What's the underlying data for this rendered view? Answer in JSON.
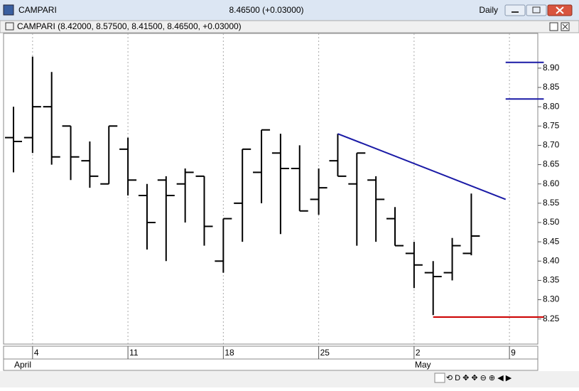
{
  "window": {
    "title": "CAMPARI",
    "quote": "8.46500 (+0.03000)",
    "period": "Daily",
    "pane_title": "CAMPARI (8.42000, 8.57500, 8.41500, 8.46500, +0.03000)"
  },
  "chart_data": {
    "type": "ohlc",
    "categories": [
      null,
      "4",
      null,
      null,
      null,
      null,
      "11",
      null,
      null,
      null,
      null,
      "18",
      null,
      null,
      null,
      null,
      "25",
      null,
      null,
      null,
      null,
      "2",
      null,
      null,
      null,
      null,
      "9"
    ],
    "months": [
      "April",
      null,
      null,
      null,
      null,
      null,
      null,
      null,
      null,
      null,
      null,
      null,
      null,
      null,
      null,
      null,
      null,
      null,
      null,
      null,
      null,
      "May",
      null,
      null,
      null,
      null,
      null
    ],
    "open": [
      8.72,
      8.72,
      8.8,
      8.75,
      8.66,
      8.6,
      8.69,
      8.57,
      8.61,
      8.6,
      8.62,
      8.4,
      8.55,
      8.63,
      8.68,
      8.64,
      8.56,
      8.66,
      8.6,
      8.61,
      8.51,
      8.42,
      8.37,
      8.37,
      8.42,
      null,
      null
    ],
    "high": [
      8.8,
      8.93,
      8.89,
      8.75,
      8.71,
      8.75,
      8.72,
      8.6,
      8.62,
      8.64,
      8.62,
      8.51,
      8.69,
      8.74,
      8.73,
      8.7,
      8.64,
      8.73,
      8.68,
      8.62,
      8.54,
      8.45,
      8.4,
      8.46,
      8.575,
      null,
      null
    ],
    "low": [
      8.63,
      8.68,
      8.65,
      8.61,
      8.59,
      8.6,
      8.57,
      8.43,
      8.4,
      8.5,
      8.44,
      8.37,
      8.45,
      8.55,
      8.47,
      8.53,
      8.52,
      8.62,
      8.44,
      8.45,
      8.44,
      8.33,
      8.26,
      8.35,
      8.415,
      null,
      null
    ],
    "close": [
      8.71,
      8.8,
      8.67,
      8.67,
      8.62,
      8.75,
      8.61,
      8.5,
      8.57,
      8.63,
      8.49,
      8.51,
      8.69,
      8.74,
      8.64,
      8.53,
      8.59,
      8.62,
      8.68,
      8.56,
      8.44,
      8.39,
      8.36,
      8.44,
      8.465,
      null,
      null
    ],
    "color": "#000000",
    "ylim": [
      8.185,
      8.99
    ],
    "yticks": [
      8.25,
      {
        "value": 8.3,
        "label": "8.30"
      },
      8.35,
      {
        "value": 8.4,
        "label": "8.40"
      },
      8.45,
      {
        "value": 8.5,
        "label": "8.50"
      },
      8.55,
      {
        "value": 8.6,
        "label": "8.60"
      },
      8.65,
      {
        "value": 8.7,
        "label": "8.70"
      },
      8.75,
      {
        "value": 8.8,
        "label": "8.80"
      },
      8.85,
      {
        "value": 8.9,
        "label": "8.90"
      }
    ],
    "grid": true,
    "drawings": [
      {
        "color": "#1a1aa6",
        "x": [
          17,
          25.8
        ],
        "y": [
          8.73,
          8.56
        ]
      },
      {
        "color": "#1a1aa6",
        "x": [
          25.8,
          27.8
        ],
        "y": [
          8.915,
          8.915
        ]
      },
      {
        "color": "#1a1aa6",
        "x": [
          25.8,
          27.8
        ],
        "y": [
          8.82,
          8.82
        ]
      },
      {
        "color": "#cc0000",
        "x": [
          22,
          27.8
        ],
        "y": [
          8.255,
          8.255
        ]
      }
    ]
  }
}
